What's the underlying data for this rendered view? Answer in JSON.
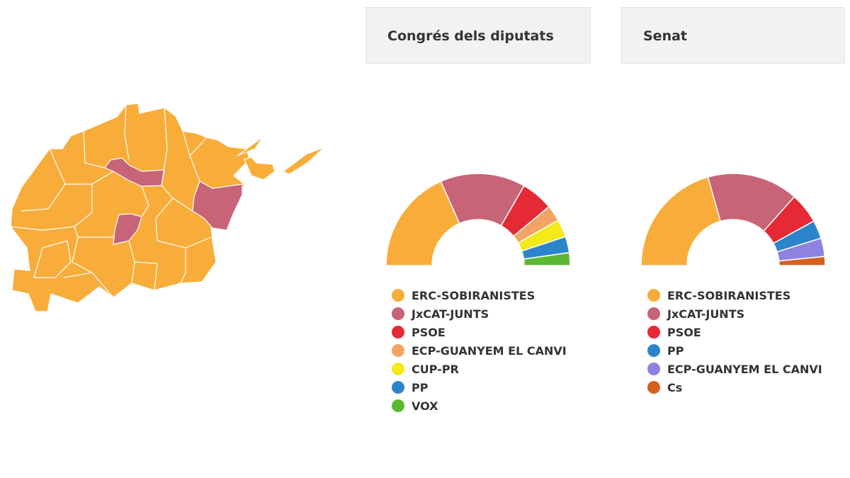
{
  "map": {
    "colors": {
      "erc": "#f8ad3a",
      "junts": "#c76478",
      "border": "#ffffff"
    }
  },
  "panels": [
    {
      "title": "Congrés dels diputats",
      "chart_data": {
        "type": "pie",
        "categories": [
          "ERC-SOBIRANISTES",
          "JxCAT-JUNTS",
          "PSOE",
          "ECP-GUANYEM EL CANVI",
          "CUP-PR",
          "PP",
          "VOX"
        ],
        "values": [
          36.1,
          29.4,
          11.1,
          5.6,
          6.1,
          5.6,
          4.4
        ],
        "colors": [
          "#f8ad3a",
          "#c76478",
          "#e42a35",
          "#f4a462",
          "#f4e91a",
          "#2c85cc",
          "#5cb832"
        ],
        "style": "semicircle-donut",
        "legend_position": "bottom"
      }
    },
    {
      "title": "Senat",
      "chart_data": {
        "type": "pie",
        "categories": [
          "ERC-SOBIRANISTES",
          "JxCAT-JUNTS",
          "PSOE",
          "PP",
          "ECP-GUANYEM EL CANVI",
          "Cs"
        ],
        "values": [
          40.3,
          31.3,
          10.6,
          6.3,
          6.3,
          3.1
        ],
        "colors": [
          "#f8ad3a",
          "#c76478",
          "#e42a35",
          "#2c85cc",
          "#8c83e0",
          "#d8601f"
        ],
        "style": "semicircle-donut",
        "legend_position": "bottom"
      }
    }
  ]
}
